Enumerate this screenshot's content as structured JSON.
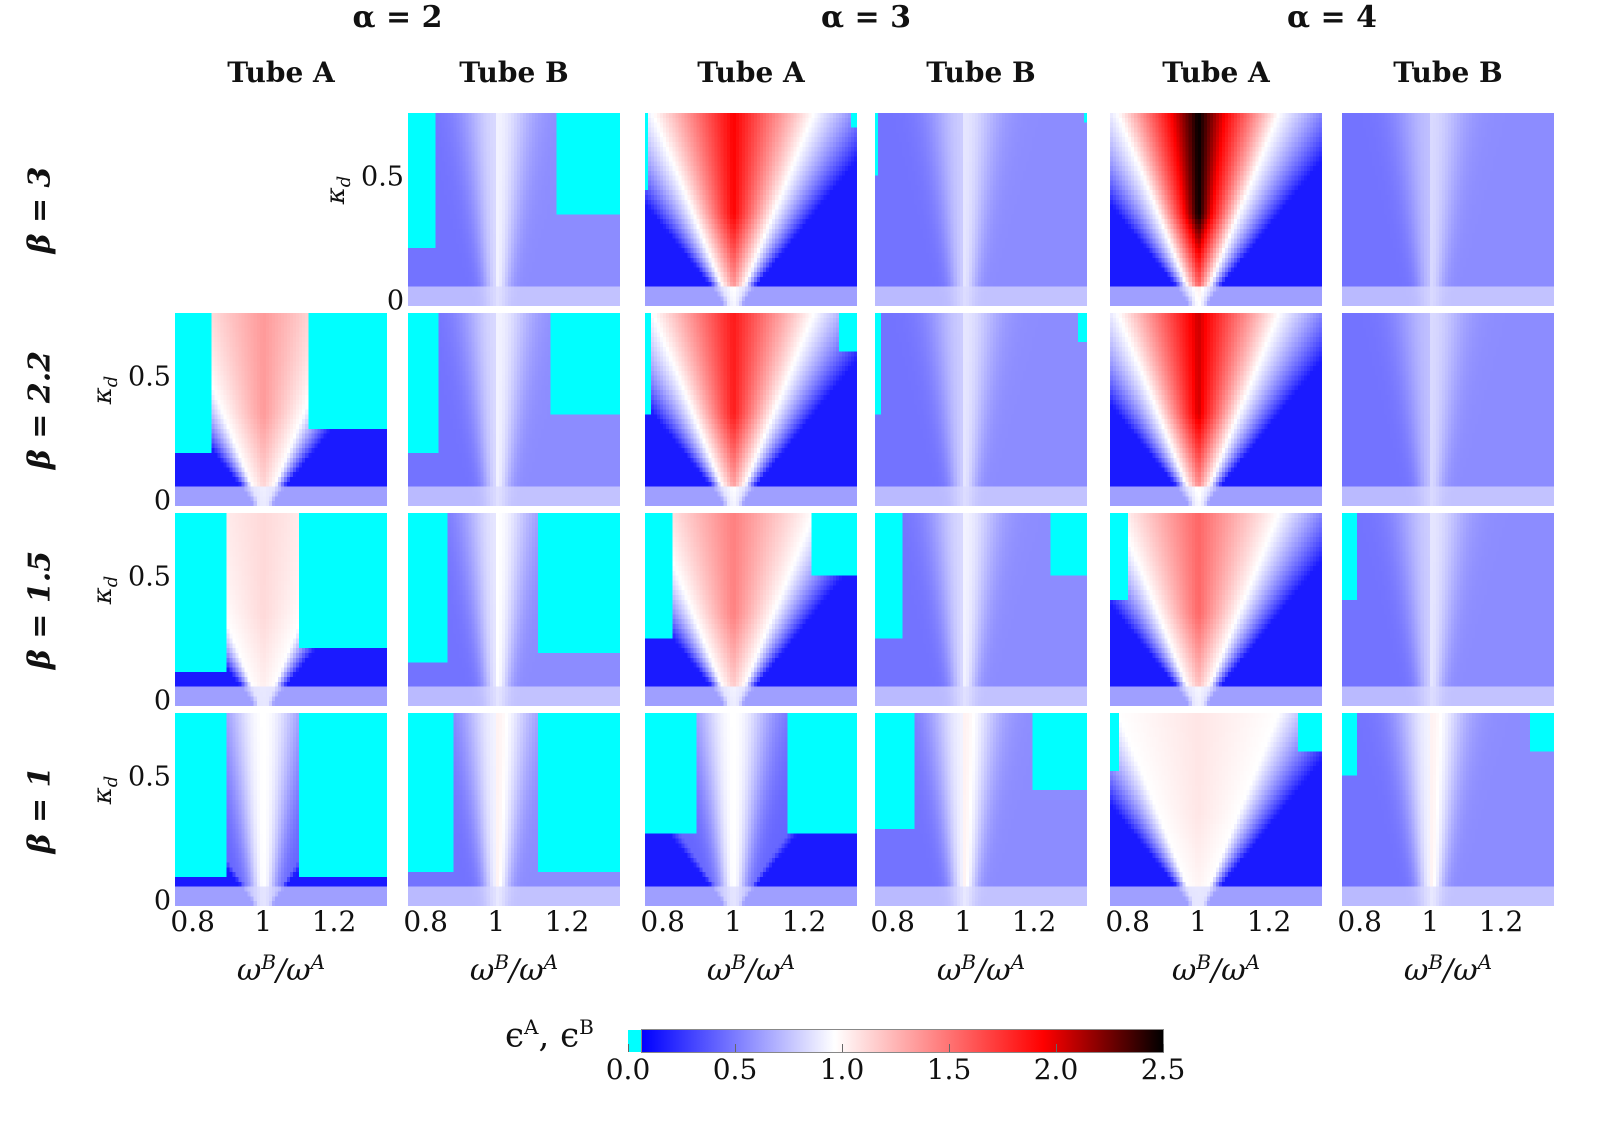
{
  "chart_data": {
    "type": "heatmap",
    "col_groups": [
      "α = 2",
      "α = 3",
      "α = 4"
    ],
    "columns": [
      "Tube A",
      "Tube B",
      "Tube A",
      "Tube B",
      "Tube A",
      "Tube B"
    ],
    "rows": [
      "β = 3",
      "β = 2.2",
      "β = 1.5",
      "β = 1"
    ],
    "xlabel_main": "ω",
    "xlabel_sup_b": "B",
    "xlabel_sup_a": "A",
    "ylabel": "κ",
    "ylabel_sub": "d",
    "xlim": [
      0.75,
      1.35
    ],
    "ylim": [
      -0.02,
      0.76
    ],
    "xticks": [
      "0.8",
      "1",
      "1.2"
    ],
    "xtick_values": [
      0.8,
      1,
      1.2
    ],
    "yticks": [
      "0.5",
      "0"
    ],
    "ytick_values": [
      0.5,
      0
    ],
    "colorbar": {
      "label_main": "ϵ",
      "label_sup_a": "A",
      "label_sep": ", ",
      "label_sup_b": "B",
      "range": [
        0,
        2.5
      ],
      "ticks": [
        "0.0",
        "0.5",
        "1.0",
        "1.5",
        "2.0",
        "2.5"
      ],
      "tick_values": [
        0,
        0.5,
        1,
        1.5,
        2,
        2.5
      ],
      "colors": {
        "below": "#00ffff",
        "low": "#0000ff",
        "mid": "#ffffff",
        "high": "#ff0000",
        "max": "#000000"
      }
    },
    "panels": [
      [
        null,
        {
          "peak": 0.85,
          "cyanL": [
            0.83,
            0.22
          ],
          "cyanR": [
            1.17,
            0.35
          ]
        },
        {
          "peak": 2.0,
          "cyanL": [
            0.76,
            0.45
          ],
          "cyanR": [
            1.33,
            0.7
          ]
        },
        {
          "peak": 0.8,
          "cyanL": [
            0.76,
            0.5
          ],
          "cyanR": [
            1.34,
            0.72
          ]
        },
        {
          "peak": 2.5,
          "cyanL": null,
          "cyanR": null
        },
        {
          "peak": 0.75,
          "cyanL": null,
          "cyanR": null
        }
      ],
      [
        {
          "peak": 1.4,
          "cyanL": [
            0.85,
            0.2
          ],
          "cyanR": [
            1.13,
            0.3
          ]
        },
        {
          "peak": 0.85,
          "cyanL": [
            0.84,
            0.2
          ],
          "cyanR": [
            1.15,
            0.35
          ]
        },
        {
          "peak": 1.9,
          "cyanL": [
            0.77,
            0.35
          ],
          "cyanR": [
            1.3,
            0.6
          ]
        },
        {
          "peak": 0.8,
          "cyanL": [
            0.77,
            0.35
          ],
          "cyanR": [
            1.32,
            0.65
          ]
        },
        {
          "peak": 2.1,
          "cyanL": null,
          "cyanR": null
        },
        {
          "peak": 0.75,
          "cyanL": null,
          "cyanR": null
        }
      ],
      [
        {
          "peak": 1.15,
          "cyanL": [
            0.9,
            0.12
          ],
          "cyanR": [
            1.1,
            0.22
          ]
        },
        {
          "peak": 0.9,
          "cyanL": [
            0.86,
            0.15
          ],
          "cyanR": [
            1.12,
            0.2
          ]
        },
        {
          "peak": 1.5,
          "cyanL": [
            0.83,
            0.25
          ],
          "cyanR": [
            1.22,
            0.5
          ]
        },
        {
          "peak": 0.85,
          "cyanL": [
            0.83,
            0.25
          ],
          "cyanR": [
            1.25,
            0.5
          ]
        },
        {
          "peak": 1.6,
          "cyanL": [
            0.8,
            0.4
          ],
          "cyanR": null
        },
        {
          "peak": 0.8,
          "cyanL": [
            0.79,
            0.4
          ],
          "cyanR": null
        }
      ],
      [
        {
          "peak": 1.0,
          "cyanL": [
            0.9,
            0.1
          ],
          "cyanR": [
            1.1,
            0.1
          ]
        },
        {
          "peak": 0.95,
          "cyanL": [
            0.88,
            0.12
          ],
          "cyanR": [
            1.12,
            0.12
          ]
        },
        {
          "peak": 1.0,
          "cyanL": [
            0.9,
            0.28
          ],
          "cyanR": [
            1.15,
            0.28
          ]
        },
        {
          "peak": 0.95,
          "cyanL": [
            0.86,
            0.3
          ],
          "cyanR": [
            1.2,
            0.45
          ]
        },
        {
          "peak": 1.1,
          "cyanL": [
            0.78,
            0.52
          ],
          "cyanR": [
            1.28,
            0.6
          ]
        },
        {
          "peak": 0.95,
          "cyanL": [
            0.79,
            0.5
          ],
          "cyanR": [
            1.28,
            0.6
          ]
        }
      ]
    ]
  }
}
